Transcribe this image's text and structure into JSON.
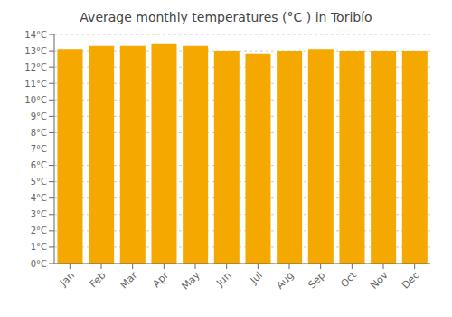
{
  "chart_data": {
    "type": "bar",
    "title": "Average monthly temperatures (°C ) in Toribío",
    "categories": [
      "Jan",
      "Feb",
      "Mar",
      "Apr",
      "May",
      "Jun",
      "Jul",
      "Aug",
      "Sep",
      "Oct",
      "Nov",
      "Dec"
    ],
    "values": [
      13.1,
      13.3,
      13.3,
      13.4,
      13.3,
      13.0,
      12.8,
      13.0,
      13.1,
      13.0,
      13.0,
      13.0
    ],
    "color": "#F5A800",
    "ylim": [
      0,
      14
    ],
    "yticks": [
      {
        "value": 0,
        "label": "0°C"
      },
      {
        "value": 1,
        "label": "1°C"
      },
      {
        "value": 2,
        "label": "2°C"
      },
      {
        "value": 3,
        "label": "3°C"
      },
      {
        "value": 4,
        "label": "4°C"
      },
      {
        "value": 5,
        "label": "5°C"
      },
      {
        "value": 6,
        "label": "6°C"
      },
      {
        "value": 7,
        "label": "7°C"
      },
      {
        "value": 8,
        "label": "8°C"
      },
      {
        "value": 9,
        "label": "9°C"
      },
      {
        "value": 10,
        "label": "10°C"
      },
      {
        "value": 11,
        "label": "11°C"
      },
      {
        "value": 12,
        "label": "12°C"
      },
      {
        "value": 13,
        "label": "13°C"
      },
      {
        "value": 14,
        "label": "14°C"
      }
    ],
    "grid": true
  }
}
